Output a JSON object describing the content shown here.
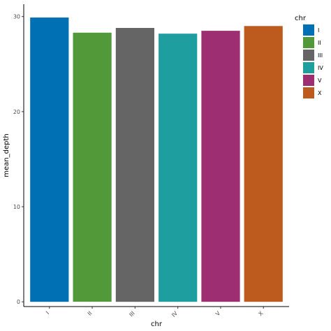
{
  "chart_data": {
    "type": "bar",
    "title": "",
    "xlabel": "chr",
    "ylabel": "mean_depth",
    "categories": [
      "I",
      "II",
      "III",
      "IV",
      "V",
      "X"
    ],
    "values": [
      29.9,
      28.3,
      28.8,
      28.2,
      28.5,
      29.0
    ],
    "colors": [
      "#0070B5",
      "#52993A",
      "#666566",
      "#1E9E9E",
      "#9D2E72",
      "#BC5B1D"
    ],
    "ylim": [
      -0.5,
      31.3
    ],
    "yticks": [
      0,
      10,
      20,
      30
    ],
    "grid": false,
    "legend": {
      "title": "chr",
      "placement": "right",
      "entries": [
        "I",
        "II",
        "III",
        "IV",
        "V",
        "X"
      ]
    }
  }
}
